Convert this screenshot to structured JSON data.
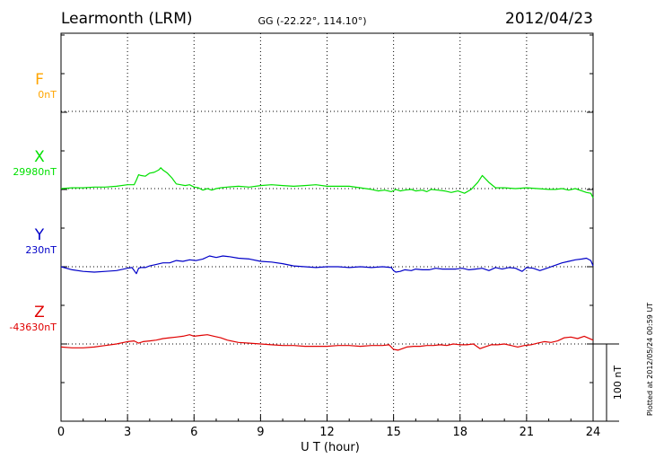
{
  "station": "Learmonth (LRM)",
  "coords": "GG (-22.22°, 114.10°)",
  "date": "2012/04/23",
  "plotted_note": "Plotted at 2012/05/24 00:59 UT",
  "chart_data": {
    "type": "line",
    "xlabel": "U T (hour)",
    "xlim": [
      0,
      24
    ],
    "xticks": [
      "0",
      "3",
      "6",
      "9",
      "12",
      "15",
      "18",
      "21",
      "24"
    ],
    "scale_bar": "100 nT",
    "grid": true,
    "series": [
      {
        "name": "F",
        "baseline": "0nT",
        "color": "#ffa500",
        "x": [],
        "values": []
      },
      {
        "name": "X",
        "baseline": "29980nT",
        "color": "#00e000",
        "x": [
          0,
          0.5,
          1,
          1.5,
          2,
          2.5,
          3,
          3.3,
          3.4,
          3.5,
          3.6,
          3.8,
          4,
          4.2,
          4.4,
          4.5,
          4.6,
          4.8,
          5,
          5.2,
          5.4,
          5.6,
          5.8,
          6,
          6.2,
          6.4,
          6.6,
          6.8,
          7,
          7.2,
          7.5,
          8,
          8.5,
          9,
          9.5,
          10,
          10.5,
          11,
          11.5,
          12,
          12.5,
          13,
          13.5,
          14,
          14.3,
          14.6,
          14.9,
          15.1,
          15.3,
          15.5,
          15.8,
          16,
          16.3,
          16.5,
          16.7,
          17,
          17.3,
          17.6,
          17.9,
          18.2,
          18.5,
          18.8,
          19,
          19.3,
          19.6,
          20,
          20.5,
          21,
          21.5,
          22,
          22.3,
          22.6,
          22.9,
          23.2,
          23.5,
          23.7,
          23.9,
          24
        ],
        "values": [
          0,
          1,
          1,
          2,
          2,
          3,
          5,
          5,
          11,
          18,
          17,
          16,
          20,
          21,
          24,
          27,
          24,
          20,
          14,
          6,
          5,
          4,
          5,
          2,
          1,
          -2,
          0,
          -2,
          0,
          1,
          2,
          3,
          2,
          4,
          5,
          4,
          3,
          4,
          5,
          3,
          3,
          3,
          1,
          -1,
          -3,
          -2,
          -4,
          -1,
          -3,
          -2,
          -1,
          -3,
          -2,
          -4,
          -1,
          -2,
          -3,
          -5,
          -3,
          -6,
          -1,
          8,
          17,
          8,
          1,
          1,
          0,
          1,
          0,
          -1,
          -1,
          0,
          -2,
          0,
          -3,
          -5,
          -6,
          -12
        ]
      },
      {
        "name": "Y",
        "baseline": "230nT",
        "color": "#0000c8",
        "x": [
          0,
          0.5,
          1,
          1.5,
          2,
          2.5,
          3,
          3.2,
          3.4,
          3.5,
          3.6,
          3.8,
          4,
          4.3,
          4.6,
          4.9,
          5.2,
          5.5,
          5.8,
          6.1,
          6.4,
          6.7,
          7,
          7.3,
          7.6,
          8,
          8.5,
          9,
          9.5,
          10,
          10.5,
          11,
          11.5,
          12,
          12.5,
          13,
          13.5,
          14,
          14.5,
          14.9,
          15,
          15.1,
          15.3,
          15.5,
          15.8,
          16,
          16.3,
          16.6,
          16.9,
          17.2,
          17.5,
          17.8,
          18.1,
          18.4,
          18.7,
          19,
          19.3,
          19.6,
          19.9,
          20.2,
          20.5,
          20.8,
          21,
          21.3,
          21.6,
          22,
          22.3,
          22.6,
          22.9,
          23.2,
          23.5,
          23.7,
          23.9,
          24
        ],
        "values": [
          0,
          -4,
          -6,
          -7,
          -6,
          -5,
          -2,
          -1,
          -9,
          -2,
          -1,
          -1,
          1,
          3,
          5,
          5,
          8,
          7,
          9,
          8,
          10,
          14,
          12,
          14,
          13,
          11,
          10,
          7,
          6,
          4,
          1,
          0,
          -1,
          0,
          0,
          -1,
          0,
          -1,
          0,
          -1,
          -5,
          -7,
          -6,
          -4,
          -5,
          -3,
          -4,
          -4,
          -2,
          -3,
          -3,
          -3,
          -2,
          -4,
          -3,
          -2,
          -5,
          -1,
          -3,
          -1,
          -2,
          -6,
          -1,
          -2,
          -5,
          -1,
          2,
          5,
          7,
          9,
          10,
          11,
          8,
          1
        ]
      },
      {
        "name": "Z",
        "baseline": "-43630nT",
        "color": "#e00000",
        "x": [
          0,
          0.5,
          1,
          1.5,
          2,
          2.5,
          3,
          3.3,
          3.5,
          3.7,
          4,
          4.3,
          4.6,
          4.9,
          5.2,
          5.5,
          5.8,
          6,
          6.3,
          6.6,
          6.9,
          7.2,
          7.5,
          8,
          8.5,
          9,
          9.5,
          10,
          10.5,
          11,
          11.5,
          12,
          12.5,
          13,
          13.5,
          14,
          14.5,
          14.8,
          15,
          15.2,
          15.4,
          15.6,
          15.9,
          16.2,
          16.5,
          16.8,
          17.1,
          17.4,
          17.7,
          18,
          18.3,
          18.6,
          18.9,
          19.1,
          19.4,
          19.7,
          20,
          20.3,
          20.6,
          20.9,
          21.2,
          21.5,
          21.8,
          22.1,
          22.4,
          22.7,
          23,
          23.3,
          23.6,
          24
        ],
        "values": [
          -4,
          -5,
          -5,
          -4,
          -2,
          0,
          3,
          4,
          1,
          3,
          4,
          5,
          7,
          8,
          9,
          10,
          12,
          10,
          11,
          12,
          10,
          8,
          5,
          2,
          1,
          0,
          -1,
          -2,
          -2,
          -3,
          -3,
          -3,
          -2,
          -2,
          -3,
          -2,
          -2,
          -1,
          -7,
          -8,
          -6,
          -4,
          -3,
          -3,
          -2,
          -2,
          -1,
          -2,
          0,
          -1,
          -1,
          0,
          -6,
          -4,
          -1,
          -1,
          0,
          -2,
          -4,
          -2,
          -1,
          1,
          3,
          2,
          4,
          8,
          9,
          7,
          10,
          5
        ]
      }
    ]
  }
}
